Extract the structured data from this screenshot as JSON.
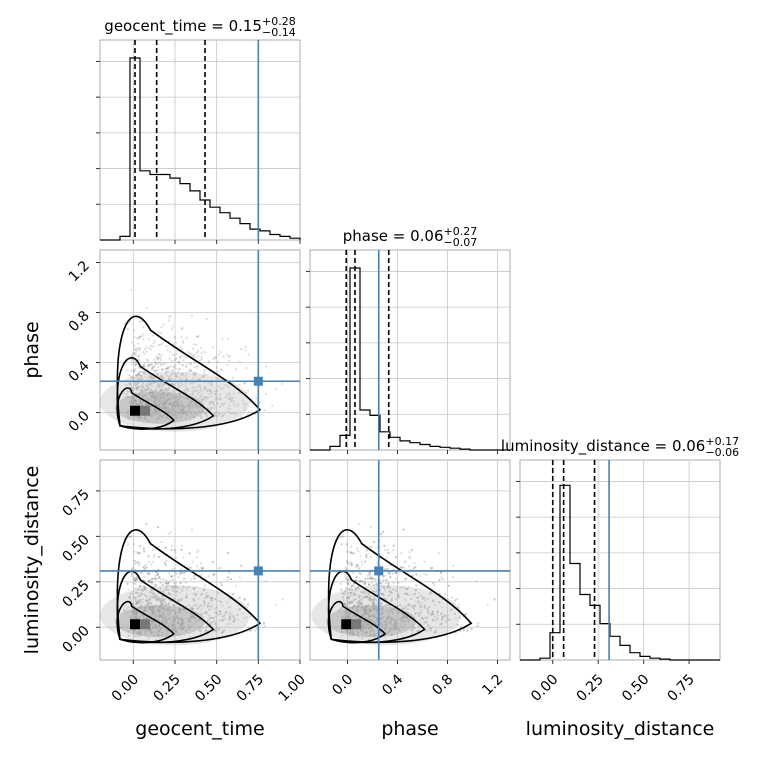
{
  "chart_data": {
    "type": "corner",
    "truth_color": "#4682b4",
    "parameters": [
      {
        "name": "geocent_time",
        "axis_label": "geocent_time",
        "title_prefix": "geocent_time = 0.15",
        "title_plus": "+0.28",
        "title_minus": "−0.14",
        "median": 0.15,
        "quantiles": [
          0.01,
          0.14,
          0.43
        ],
        "truth": 0.75,
        "range": [
          -0.2,
          1.0
        ],
        "ticks": [
          0.0,
          0.25,
          0.5,
          0.75,
          1.0
        ],
        "tick_labels": [
          "0.00",
          "0.25",
          "0.50",
          "0.75",
          "1.00"
        ],
        "hist": [
          0,
          0,
          0.02,
          1.0,
          0.38,
          0.36,
          0.36,
          0.34,
          0.31,
          0.27,
          0.22,
          0.18,
          0.15,
          0.12,
          0.09,
          0.06,
          0.05,
          0.03,
          0.02,
          0.01
        ]
      },
      {
        "name": "phase",
        "axis_label": "phase",
        "title_prefix": "phase = 0.06",
        "title_plus": "+0.27",
        "title_minus": "−0.07",
        "median": 0.06,
        "quantiles": [
          -0.01,
          0.06,
          0.33
        ],
        "truth": 0.25,
        "range": [
          -0.3,
          1.3
        ],
        "ticks": [
          0.0,
          0.4,
          0.8,
          1.2
        ],
        "tick_labels": [
          "0.0",
          "0.4",
          "0.8",
          "1.2"
        ],
        "hist": [
          0,
          0,
          0.02,
          0.08,
          1.0,
          0.22,
          0.19,
          0.1,
          0.07,
          0.05,
          0.04,
          0.03,
          0.02,
          0.015,
          0.01,
          0.005,
          0,
          0,
          0,
          0
        ]
      },
      {
        "name": "luminosity_distance",
        "axis_label": "luminosity_distance",
        "title_prefix": "luminosity_distance = 0.06",
        "title_plus": "+0.17",
        "title_minus": "−0.06",
        "median": 0.06,
        "quantiles": [
          0.0,
          0.06,
          0.23
        ],
        "truth": 0.31,
        "range": [
          -0.18,
          0.92
        ],
        "ticks": [
          0.0,
          0.25,
          0.5,
          0.75
        ],
        "tick_labels": [
          "0.00",
          "0.25",
          "0.50",
          "0.75"
        ],
        "hist": [
          0,
          0,
          0.01,
          0.15,
          0.96,
          0.53,
          0.36,
          0.3,
          0.2,
          0.13,
          0.08,
          0.04,
          0.02,
          0.01,
          0.005,
          0,
          0,
          0,
          0,
          0
        ]
      }
    ],
    "y_tick_labels": {
      "phase": [
        "0.0",
        "0.4",
        "0.8",
        "1.2"
      ],
      "luminosity_distance": [
        "0.00",
        "0.25",
        "0.50",
        "0.75"
      ]
    },
    "grid": true
  }
}
